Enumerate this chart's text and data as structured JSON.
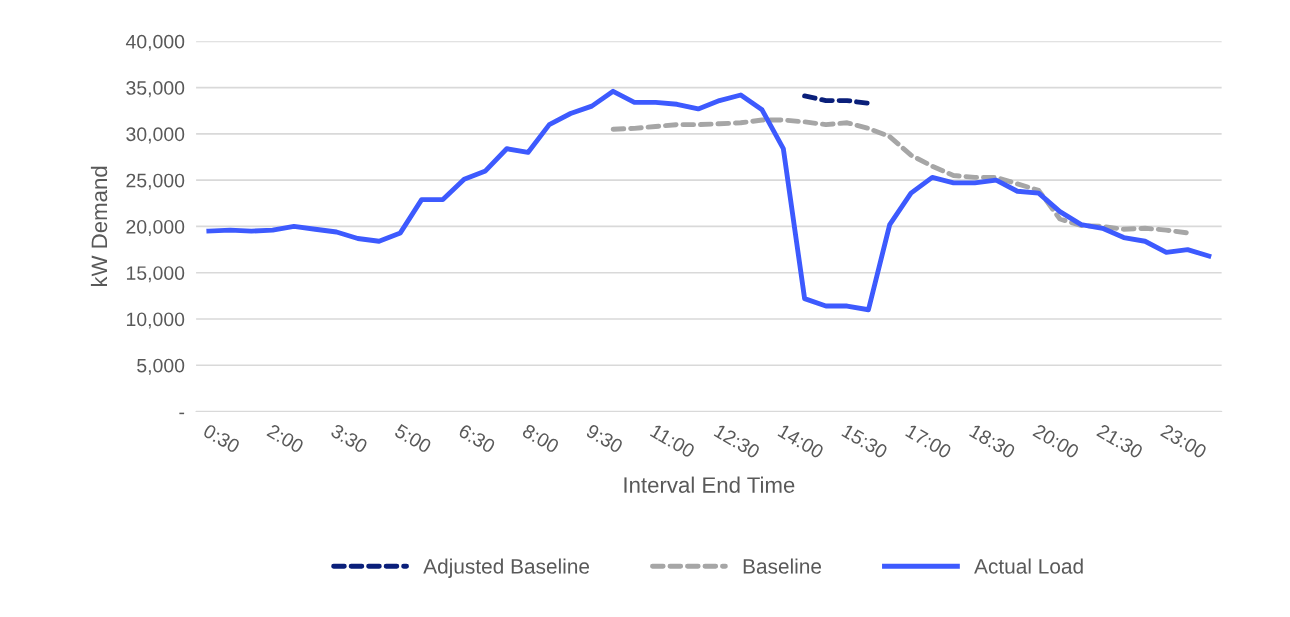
{
  "chart_data": {
    "type": "line",
    "xlabel": "Interval End Time",
    "ylabel": "kW Demand",
    "categories": [
      "0:30",
      null,
      null,
      "2:00",
      null,
      null,
      "3:30",
      null,
      null,
      "5:00",
      null,
      null,
      "6:30",
      null,
      null,
      "8:00",
      null,
      null,
      "9:30",
      null,
      null,
      "11:00",
      null,
      null,
      "12:30",
      null,
      null,
      "14:00",
      null,
      null,
      "15:30",
      null,
      null,
      "17:00",
      null,
      null,
      "18:30",
      null,
      null,
      "20:00",
      null,
      null,
      "21:30",
      null,
      null,
      "23:00",
      null,
      null
    ],
    "series": [
      {
        "name": "Adjusted Baseline",
        "color": "#0a1f7a",
        "line_style": "dashed",
        "values": [
          null,
          null,
          null,
          null,
          null,
          null,
          null,
          null,
          null,
          null,
          null,
          null,
          null,
          null,
          null,
          null,
          null,
          null,
          null,
          null,
          null,
          null,
          null,
          null,
          null,
          null,
          null,
          null,
          34100,
          33600,
          33600,
          33300,
          null,
          null,
          null,
          null,
          null,
          null,
          null,
          null,
          null,
          null,
          null,
          null,
          null,
          null,
          null,
          null
        ]
      },
      {
        "name": "Baseline",
        "color": "#a6a6a6",
        "line_style": "dashed",
        "values": [
          null,
          null,
          null,
          null,
          null,
          null,
          null,
          null,
          null,
          null,
          null,
          null,
          null,
          null,
          null,
          null,
          null,
          null,
          null,
          30500,
          30600,
          30800,
          31000,
          31000,
          31100,
          31200,
          31500,
          31500,
          31300,
          31000,
          31200,
          30600,
          29700,
          27700,
          26500,
          25500,
          25300,
          25300,
          24600,
          23900,
          20800,
          20100,
          20000,
          19700,
          19800,
          19600,
          19300,
          null
        ]
      },
      {
        "name": "Actual Load",
        "color": "#3d5afe",
        "line_style": "solid",
        "values": [
          19500,
          19600,
          19500,
          19600,
          20000,
          19700,
          19400,
          18700,
          18400,
          19300,
          22900,
          22900,
          25100,
          26000,
          28400,
          28000,
          31000,
          32200,
          33000,
          34600,
          33400,
          33400,
          33200,
          32700,
          33600,
          34200,
          32600,
          28400,
          12200,
          11400,
          11400,
          11000,
          20200,
          23600,
          25300,
          24700,
          24700,
          25000,
          23800,
          23600,
          21600,
          20200,
          19800,
          18800,
          18400,
          17200,
          17500,
          16800
        ]
      }
    ],
    "ylim": [
      0,
      40000
    ],
    "yticks": [
      {
        "value": 0,
        "label": "-"
      },
      {
        "value": 5000,
        "label": "5,000"
      },
      {
        "value": 10000,
        "label": "10,000"
      },
      {
        "value": 15000,
        "label": "15,000"
      },
      {
        "value": 20000,
        "label": "20,000"
      },
      {
        "value": 25000,
        "label": "25,000"
      },
      {
        "value": 30000,
        "label": "30,000"
      },
      {
        "value": 35000,
        "label": "35,000"
      },
      {
        "value": 40000,
        "label": "40,000"
      }
    ],
    "grid": "y",
    "legend": "bottom",
    "marker": "none"
  }
}
